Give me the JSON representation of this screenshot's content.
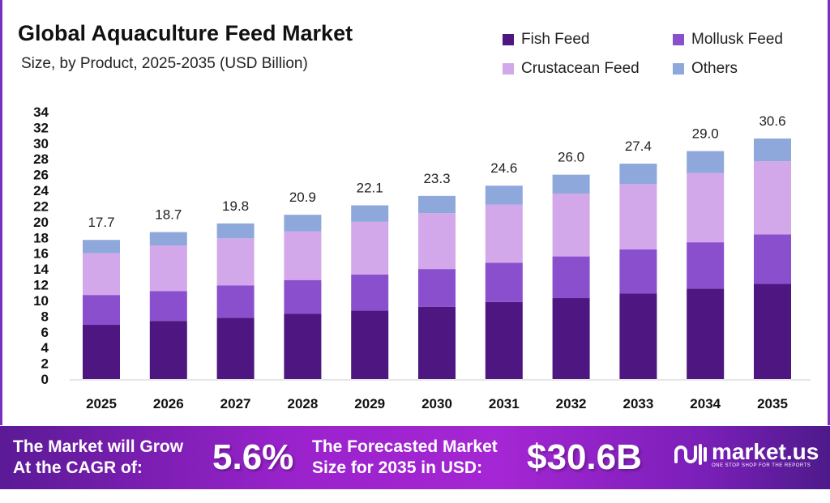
{
  "chart_data": {
    "type": "bar",
    "stacked": true,
    "title": "Global Aquaculture Feed Market",
    "subtitle": "Size, by Product, 2025-2035 (USD Billion)",
    "categories": [
      "2025",
      "2026",
      "2027",
      "2028",
      "2029",
      "2030",
      "2031",
      "2032",
      "2033",
      "2034",
      "2035"
    ],
    "series": [
      {
        "name": "Fish Feed",
        "color": "#4d1680",
        "values": [
          6.9,
          7.4,
          7.8,
          8.3,
          8.7,
          9.2,
          9.8,
          10.3,
          10.9,
          11.5,
          12.1
        ]
      },
      {
        "name": "Mollusk Feed",
        "color": "#8a4fcc",
        "values": [
          3.8,
          3.8,
          4.1,
          4.3,
          4.6,
          4.8,
          5.0,
          5.3,
          5.6,
          5.9,
          6.3
        ]
      },
      {
        "name": "Crustacean Feed",
        "color": "#d3a8ea",
        "values": [
          5.3,
          5.8,
          6.0,
          6.2,
          6.7,
          7.1,
          7.4,
          8.0,
          8.3,
          8.8,
          9.3
        ]
      },
      {
        "name": "Others",
        "color": "#8fa8dc",
        "values": [
          1.7,
          1.7,
          1.9,
          2.1,
          2.1,
          2.2,
          2.4,
          2.4,
          2.6,
          2.8,
          2.9
        ]
      }
    ],
    "totals": [
      "17.7",
      "18.7",
      "19.8",
      "20.9",
      "22.1",
      "23.3",
      "24.6",
      "26.0",
      "27.4",
      "29.0",
      "30.6"
    ],
    "yticks": [
      "0",
      "2",
      "4",
      "6",
      "8",
      "10",
      "12",
      "14",
      "16",
      "18",
      "20",
      "22",
      "24",
      "26",
      "28",
      "30",
      "32",
      "34"
    ],
    "ylim": [
      0,
      34
    ],
    "xlabel": "",
    "ylabel": "",
    "grid": false,
    "legend": "top-right"
  },
  "banner": {
    "cagr_label_1": "The Market will Grow",
    "cagr_label_2": "At the CAGR of:",
    "cagr_value": "5.6%",
    "forecast_label_1": "The Forecasted Market",
    "forecast_label_2": "Size for 2035 in USD:",
    "forecast_value": "$30.6B",
    "logo_name": "market.us",
    "logo_tagline": "ONE STOP SHOP FOR THE REPORTS"
  }
}
